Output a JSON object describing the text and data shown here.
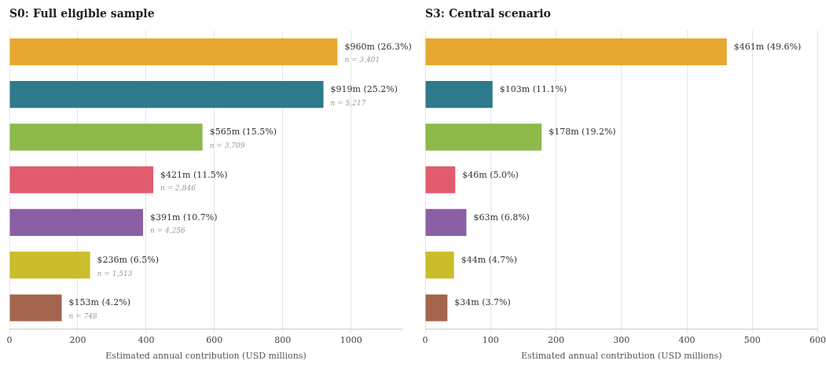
{
  "chart_data": [
    {
      "type": "bar",
      "orientation": "horizontal",
      "title": "S0: Full eligible sample",
      "xlabel": "Estimated annual contribution (USD millions)",
      "categories": [
        null,
        null,
        null,
        null,
        null,
        null,
        null
      ],
      "values": [
        960,
        919,
        565,
        421,
        391,
        236,
        153
      ],
      "colors": [
        "#e8a830",
        "#2d7a8c",
        "#8db84a",
        "#e05c6e",
        "#8b5fa5",
        "#c9bd2c",
        "#a3654d"
      ],
      "value_labels": [
        "$960m",
        "$919m",
        "$565m",
        "$421m",
        "$391m",
        "$236m",
        "$153m"
      ],
      "annotations": [
        "(26.3%)",
        "(25.2%)",
        "(15.5%)",
        "(11.5%)",
        "(10.7%)",
        "(6.5%)",
        "(4.2%)",
        "n = 3,401",
        "n = 5,217",
        "n = 3,709",
        "n = 2,846",
        "n = 4,256",
        "n = 1,513",
        "n = 748"
      ],
      "xlim": [
        0,
        1150
      ],
      "xticks": [
        0,
        200,
        400,
        600,
        800,
        1000
      ],
      "grid": "x",
      "tick_labels": "x",
      "legend": false
    },
    {
      "type": "bar",
      "orientation": "horizontal",
      "title": "S3: Central scenario",
      "xlabel": "Estimated annual contribution (USD millions)",
      "categories": [
        null,
        null,
        null,
        null,
        null,
        null,
        null
      ],
      "values": [
        461,
        103,
        178,
        46,
        63,
        44,
        34
      ],
      "colors": [
        "#e8a830",
        "#2d7a8c",
        "#8db84a",
        "#e05c6e",
        "#8b5fa5",
        "#c9bd2c",
        "#a3654d"
      ],
      "value_labels": [
        "$461m",
        "$103m",
        "$178m",
        "$46m",
        "$63m",
        "$44m",
        "$34m"
      ],
      "annotations": [
        "(49.6%)",
        "(11.1%)",
        "(19.2%)",
        "(5.0%)",
        "(6.8%)",
        "(4.7%)",
        "(3.7%)"
      ],
      "xlim": [
        0,
        600
      ],
      "xticks": [
        0,
        100,
        200,
        300,
        400,
        500,
        600
      ],
      "grid": "x",
      "tick_labels": "x",
      "legend": false
    }
  ]
}
